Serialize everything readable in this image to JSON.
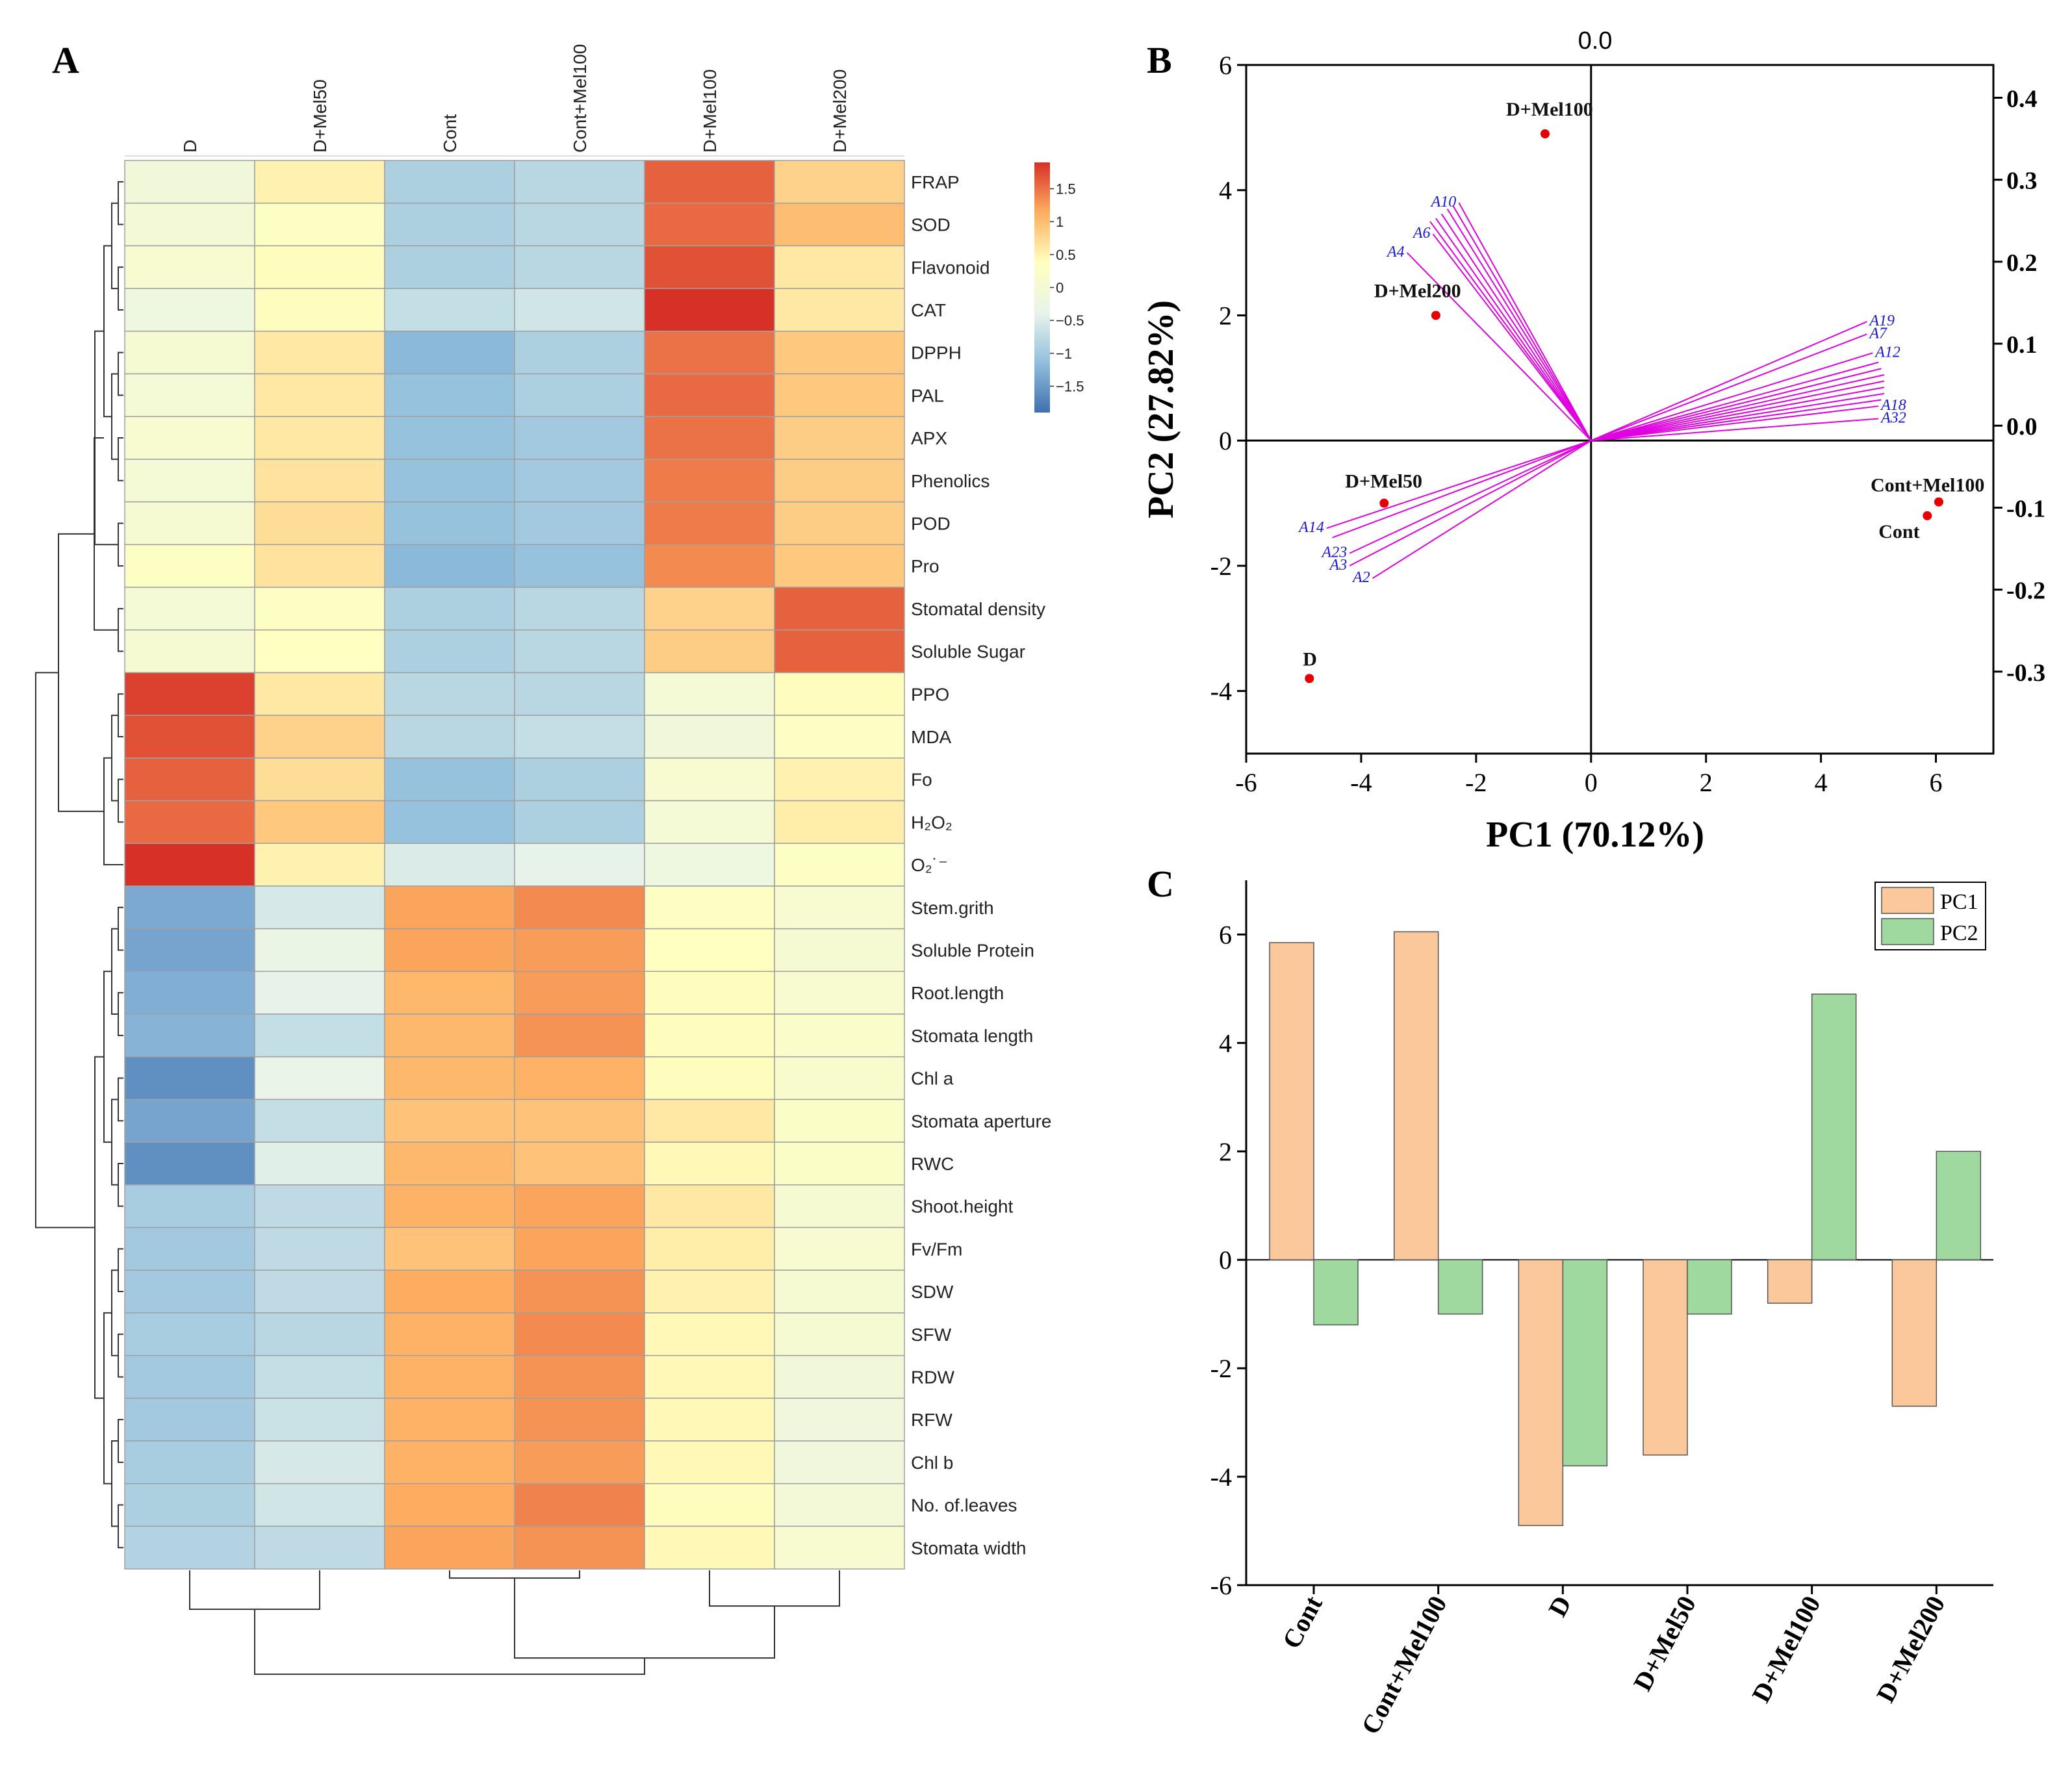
{
  "figure": {
    "panel_labels": {
      "a": "A",
      "b": "B",
      "c": "C"
    }
  },
  "colors": {
    "heatmap_scale": [
      "#3f6fb0",
      "#92bfdd",
      "#e9f4ea",
      "#ffffbf",
      "#fdae61",
      "#d73027"
    ],
    "grid": "#a0a0a0",
    "dendrogram": "#333333",
    "pca_point": "#e60000",
    "pca_loading_line": "#e000e0",
    "pca_loading_label": "#1a1acc",
    "pc1_bar": "#fac89a",
    "pc2_bar": "#9fd9a0",
    "axis": "#000000"
  },
  "chart_data": [
    {
      "id": "A",
      "type": "heatmap",
      "title": "",
      "columns": [
        "D",
        "D+Mel50",
        "Cont",
        "Cont+Mel100",
        "D+Mel100",
        "D+Mel200"
      ],
      "rows": [
        "FRAP",
        "SOD",
        "Flavonoid",
        "CAT",
        "DPPH",
        "PAL",
        "APX",
        "Phenolics",
        "POD",
        "Pro",
        "Stomatal density",
        "Soluble Sugar",
        "PPO",
        "MDA",
        "Fo",
        "H₂O₂",
        "O₂˙⁻",
        "Stem.grith",
        "Soluble Protein",
        "Root.length",
        "Stomata length",
        "Chl a",
        "Stomata aperture",
        "RWC",
        "Shoot.height",
        "Fv/Fm",
        "SDW",
        "SFW",
        "RDW",
        "RFW",
        "Chl b",
        "No. of.leaves",
        "Stomata width"
      ],
      "values": [
        [
          -0.1,
          0.5,
          -0.9,
          -0.8,
          1.6,
          0.8
        ],
        [
          -0.05,
          0.3,
          -0.9,
          -0.8,
          1.55,
          1.0
        ],
        [
          0.1,
          0.4,
          -0.9,
          -0.8,
          1.7,
          0.6
        ],
        [
          -0.2,
          0.4,
          -0.7,
          -0.6,
          1.9,
          0.6
        ],
        [
          0.05,
          0.6,
          -1.2,
          -0.9,
          1.5,
          0.9
        ],
        [
          0.0,
          0.6,
          -1.1,
          -0.9,
          1.55,
          0.9
        ],
        [
          0.1,
          0.6,
          -1.1,
          -1.0,
          1.5,
          0.85
        ],
        [
          0.0,
          0.65,
          -1.1,
          -1.0,
          1.45,
          0.85
        ],
        [
          0.05,
          0.7,
          -1.1,
          -1.0,
          1.45,
          0.85
        ],
        [
          0.3,
          0.65,
          -1.2,
          -1.1,
          1.35,
          0.9
        ],
        [
          0.0,
          0.3,
          -0.9,
          -0.8,
          0.8,
          1.6
        ],
        [
          0.05,
          0.35,
          -0.9,
          -0.8,
          0.85,
          1.6
        ],
        [
          1.8,
          0.6,
          -0.8,
          -0.8,
          0.0,
          0.4
        ],
        [
          1.7,
          0.8,
          -0.8,
          -0.7,
          -0.1,
          0.3
        ],
        [
          1.6,
          0.7,
          -1.1,
          -0.9,
          0.1,
          0.5
        ],
        [
          1.55,
          0.9,
          -1.1,
          -0.9,
          0.0,
          0.55
        ],
        [
          1.9,
          0.5,
          -0.5,
          -0.4,
          -0.2,
          0.3
        ],
        [
          -1.35,
          -0.55,
          1.2,
          1.35,
          0.3,
          0.1
        ],
        [
          -1.4,
          -0.3,
          1.2,
          1.25,
          0.35,
          0.05
        ],
        [
          -1.3,
          -0.4,
          1.05,
          1.25,
          0.4,
          0.1
        ],
        [
          -1.25,
          -0.7,
          1.05,
          1.3,
          0.4,
          0.2
        ],
        [
          -1.6,
          -0.35,
          1.05,
          1.1,
          0.4,
          0.15
        ],
        [
          -1.4,
          -0.7,
          0.95,
          0.95,
          0.6,
          0.25
        ],
        [
          -1.6,
          -0.45,
          1.05,
          0.95,
          0.45,
          0.25
        ],
        [
          -0.95,
          -0.75,
          1.1,
          1.2,
          0.6,
          0.05
        ],
        [
          -1.0,
          -0.75,
          0.95,
          1.2,
          0.55,
          0.1
        ],
        [
          -1.0,
          -0.75,
          1.15,
          1.3,
          0.5,
          0.05
        ],
        [
          -0.95,
          -0.8,
          1.1,
          1.35,
          0.45,
          0.05
        ],
        [
          -1.0,
          -0.7,
          1.1,
          1.3,
          0.45,
          -0.1
        ],
        [
          -1.0,
          -0.65,
          1.1,
          1.3,
          0.45,
          -0.15
        ],
        [
          -0.95,
          -0.55,
          1.1,
          1.25,
          0.45,
          -0.15
        ],
        [
          -0.9,
          -0.6,
          1.15,
          1.4,
          0.4,
          -0.05
        ],
        [
          -0.85,
          -0.75,
          1.2,
          1.3,
          0.45,
          0.1
        ]
      ],
      "color_scale": {
        "min": -1.9,
        "max": 1.9,
        "ticks": [
          1.5,
          1,
          0.5,
          0,
          -0.5,
          -1,
          -1.5
        ],
        "tick_labels": [
          "1.5",
          "1",
          "0.5",
          "0",
          "−0.5",
          "−1",
          "−1.5"
        ]
      },
      "row_groups": [
        {
          "from": 0,
          "to": 9
        },
        {
          "from": 10,
          "to": 11
        },
        {
          "from": 12,
          "to": 16
        },
        {
          "from": 17,
          "to": 32
        }
      ],
      "column_clustering": "((D, D+Mel50), ((Cont, Cont+Mel100), (D+Mel100, D+Mel200)))"
    },
    {
      "id": "B",
      "type": "scatter",
      "subtype": "pca_biplot",
      "xlabel": "PC1 (70.12%)",
      "ylabel": "PC2 (27.82%)",
      "top_label": "0.0",
      "xlim": [
        -6,
        7
      ],
      "ylim": [
        -5,
        6
      ],
      "x_ticks": [
        -6,
        -4,
        -2,
        0,
        2,
        4,
        6
      ],
      "y_ticks": [
        -4,
        -2,
        0,
        2,
        4,
        6
      ],
      "y2lim": [
        -0.4,
        0.44
      ],
      "y2_ticks": [
        0.4,
        0.3,
        0.2,
        0.1,
        0.0,
        -0.1,
        -0.2,
        -0.3
      ],
      "y2_tick_labels": [
        "0.4",
        "0.3",
        "0.2",
        "0.1",
        "0.0",
        "-0.1",
        "-0.2",
        "-0.3"
      ],
      "points": [
        {
          "label": "D+Mel100",
          "x": -0.8,
          "y": 4.9
        },
        {
          "label": "D+Mel200",
          "x": -2.7,
          "y": 2.0
        },
        {
          "label": "D+Mel50",
          "x": -3.6,
          "y": -1.0
        },
        {
          "label": "D",
          "x": -4.9,
          "y": -3.8
        },
        {
          "label": "Cont+Mel100",
          "x": 6.05,
          "y": -0.98
        },
        {
          "label": "Cont",
          "x": 5.85,
          "y": -1.2
        }
      ],
      "loadings": [
        {
          "label": "A10",
          "x": -2.3,
          "y": 3.8
        },
        {
          "label": "",
          "x": -2.4,
          "y": 3.75
        },
        {
          "label": "",
          "x": -2.5,
          "y": 3.7
        },
        {
          "label": "",
          "x": -2.6,
          "y": 3.62
        },
        {
          "label": "",
          "x": -2.7,
          "y": 3.55
        },
        {
          "label": "",
          "x": -2.8,
          "y": 3.5
        },
        {
          "label": "A6",
          "x": -2.75,
          "y": 3.3
        },
        {
          "label": "A4",
          "x": -3.2,
          "y": 3.0
        },
        {
          "label": "A19",
          "x": 4.8,
          "y": 1.9
        },
        {
          "label": "A7",
          "x": 4.8,
          "y": 1.7
        },
        {
          "label": "A12",
          "x": 4.9,
          "y": 1.4
        },
        {
          "label": "",
          "x": 5.0,
          "y": 1.25
        },
        {
          "label": "",
          "x": 5.05,
          "y": 1.15
        },
        {
          "label": "",
          "x": 5.1,
          "y": 1.05
        },
        {
          "label": "",
          "x": 5.1,
          "y": 0.95
        },
        {
          "label": "",
          "x": 5.1,
          "y": 0.85
        },
        {
          "label": "",
          "x": 5.1,
          "y": 0.75
        },
        {
          "label": "",
          "x": 5.05,
          "y": 0.65
        },
        {
          "label": "A18",
          "x": 5.0,
          "y": 0.55
        },
        {
          "label": "A32",
          "x": 5.0,
          "y": 0.35
        },
        {
          "label": "A14",
          "x": -4.6,
          "y": -1.4
        },
        {
          "label": "",
          "x": -4.5,
          "y": -1.55
        },
        {
          "label": "A23",
          "x": -4.2,
          "y": -1.8
        },
        {
          "label": "A3",
          "x": -4.2,
          "y": -2.0
        },
        {
          "label": "A2",
          "x": -3.8,
          "y": -2.2
        }
      ]
    },
    {
      "id": "C",
      "type": "bar",
      "categories": [
        "Cont",
        "Cont+Mel100",
        "D",
        "D+Mel50",
        "D+Mel100",
        "D+Mel200"
      ],
      "series": [
        {
          "name": "PC1",
          "values": [
            5.85,
            6.05,
            -4.9,
            -3.6,
            -0.8,
            -2.7
          ]
        },
        {
          "name": "PC2",
          "values": [
            -1.2,
            -1.0,
            -3.8,
            -1.0,
            4.9,
            2.0
          ]
        }
      ],
      "ylim": [
        -6,
        7
      ],
      "y_ticks": [
        -6,
        -4,
        -2,
        0,
        2,
        4,
        6
      ],
      "legend_position": "top-right",
      "xlabel": "",
      "ylabel": ""
    }
  ]
}
